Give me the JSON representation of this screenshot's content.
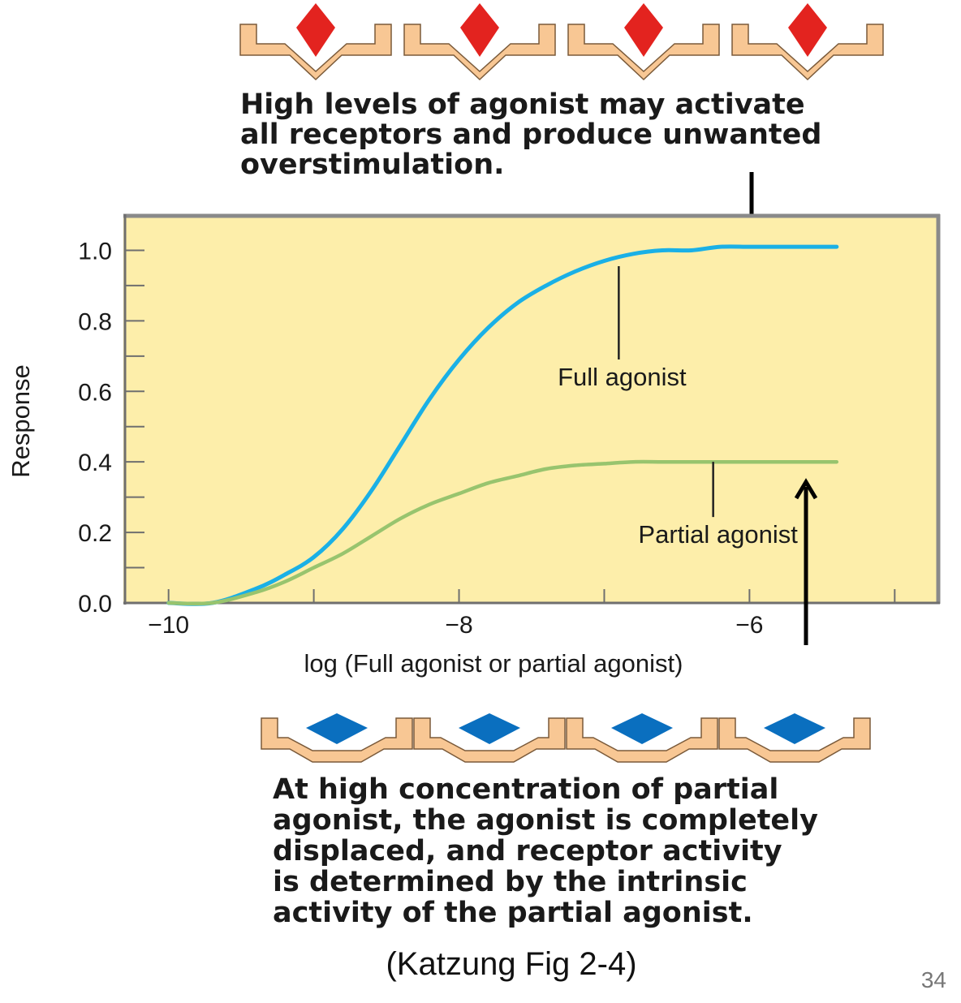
{
  "top_caption": [
    "High levels of agonist may activate",
    "all receptors and produce unwanted",
    "overstimulation."
  ],
  "bottom_caption": [
    "At high concentration of partial",
    "agonist, the agonist is completely",
    "displaced, and receptor activity",
    "is determined by the intrinsic",
    "activity of the partial agonist."
  ],
  "source": "(Katzung Fig 2-4)",
  "page_number": "34",
  "icons": {
    "top_row": [
      "receptor-with-full-agonist-icon",
      "receptor-with-full-agonist-icon",
      "receptor-with-full-agonist-icon",
      "receptor-with-full-agonist-icon"
    ],
    "bottom_row": [
      "receptor-with-partial-agonist-icon",
      "receptor-with-partial-agonist-icon",
      "receptor-with-partial-agonist-icon",
      "receptor-with-partial-agonist-icon"
    ]
  },
  "colors": {
    "plot_background": "#fdeeaa",
    "receptor": "#f8c794",
    "full_agonist_marker": "#e3231f",
    "partial_agonist_marker": "#0a6fbf",
    "full_agonist_curve": "#1ab0e6",
    "partial_agonist_curve": "#98c46e"
  },
  "chart_data": {
    "type": "line",
    "xlabel": "log (Full agonist or partial agonist)",
    "ylabel": "Response",
    "xlim": [
      -10.3,
      -4.7
    ],
    "ylim": [
      0.0,
      1.1
    ],
    "x_ticks": [
      -10,
      -8,
      -6
    ],
    "x_tick_labels": [
      "−10",
      "−8",
      "−6"
    ],
    "y_ticks": [
      0.0,
      0.2,
      0.4,
      0.6,
      0.8,
      1.0
    ],
    "y_tick_labels": [
      "0.0",
      "0.2",
      "0.4",
      "0.6",
      "0.8",
      "1.0"
    ],
    "grid": false,
    "series": [
      {
        "name": "Full agonist",
        "x": [
          -10.0,
          -9.7,
          -9.4,
          -9.2,
          -9.0,
          -8.8,
          -8.6,
          -8.4,
          -8.2,
          -8.0,
          -7.8,
          -7.6,
          -7.4,
          -7.2,
          -7.0,
          -6.8,
          -6.6,
          -6.4,
          -6.2,
          -6.0,
          -5.8,
          -5.6,
          -5.4
        ],
        "y": [
          0.0,
          0.0,
          0.04,
          0.08,
          0.13,
          0.21,
          0.32,
          0.45,
          0.58,
          0.69,
          0.78,
          0.85,
          0.9,
          0.94,
          0.97,
          0.99,
          1.0,
          1.0,
          1.01,
          1.01,
          1.01,
          1.01,
          1.01
        ]
      },
      {
        "name": "Partial agonist",
        "x": [
          -10.0,
          -9.7,
          -9.4,
          -9.2,
          -9.0,
          -8.8,
          -8.6,
          -8.4,
          -8.2,
          -8.0,
          -7.8,
          -7.6,
          -7.4,
          -7.2,
          -7.0,
          -6.8,
          -6.6,
          -6.4,
          -6.2,
          -6.0,
          -5.8,
          -5.6,
          -5.4
        ],
        "y": [
          0.0,
          0.0,
          0.03,
          0.06,
          0.1,
          0.14,
          0.19,
          0.24,
          0.28,
          0.31,
          0.34,
          0.36,
          0.38,
          0.39,
          0.395,
          0.4,
          0.4,
          0.4,
          0.4,
          0.4,
          0.4,
          0.4,
          0.4
        ]
      }
    ],
    "annotations": [
      {
        "text": "Full agonist",
        "series": "Full agonist",
        "x": -6.9,
        "y": 0.955
      },
      {
        "text": "Partial agonist",
        "series": "Partial agonist",
        "x": -6.25,
        "y": 0.4
      }
    ]
  }
}
